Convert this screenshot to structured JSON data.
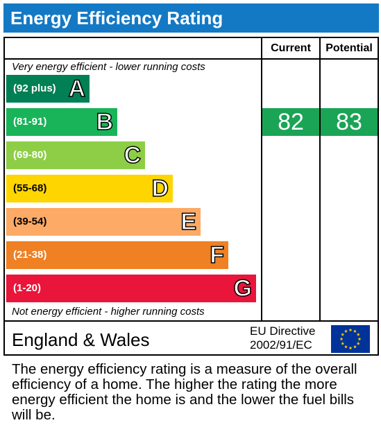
{
  "chart_data": {
    "type": "bar",
    "title": "Energy Efficiency Rating",
    "columns": [
      "Current",
      "Potential"
    ],
    "top_caption": "Very energy efficient - lower running costs",
    "bottom_caption": "Not energy efficient - higher running costs",
    "bands": [
      {
        "letter": "A",
        "range": "(92 plus)",
        "min": 92,
        "max": 100,
        "color": "#008054"
      },
      {
        "letter": "B",
        "range": "(81-91)",
        "min": 81,
        "max": 91,
        "color": "#19b459"
      },
      {
        "letter": "C",
        "range": "(69-80)",
        "min": 69,
        "max": 80,
        "color": "#8dce46"
      },
      {
        "letter": "D",
        "range": "(55-68)",
        "min": 55,
        "max": 68,
        "color": "#ffd500"
      },
      {
        "letter": "E",
        "range": "(39-54)",
        "min": 39,
        "max": 54,
        "color": "#fcaa65"
      },
      {
        "letter": "F",
        "range": "(21-38)",
        "min": 21,
        "max": 38,
        "color": "#ef8023"
      },
      {
        "letter": "G",
        "range": "(1-20)",
        "min": 1,
        "max": 20,
        "color": "#e9153b"
      }
    ],
    "current": 82,
    "potential": 83
  },
  "footer": {
    "region": "England & Wales",
    "directive_line1": "EU Directive",
    "directive_line2": "2002/91/EC"
  },
  "description": "The energy efficiency rating is a measure of the overall efficiency of a home. The higher the rating the more energy efficient the home is and the lower the fuel bills will be.",
  "colors": {
    "title_bg": "#1479c5",
    "score_bg": "#1aa455",
    "flag_bg": "#003399",
    "flag_star": "#ffcc00"
  },
  "icons": {
    "flag": "eu-flag-icon"
  }
}
